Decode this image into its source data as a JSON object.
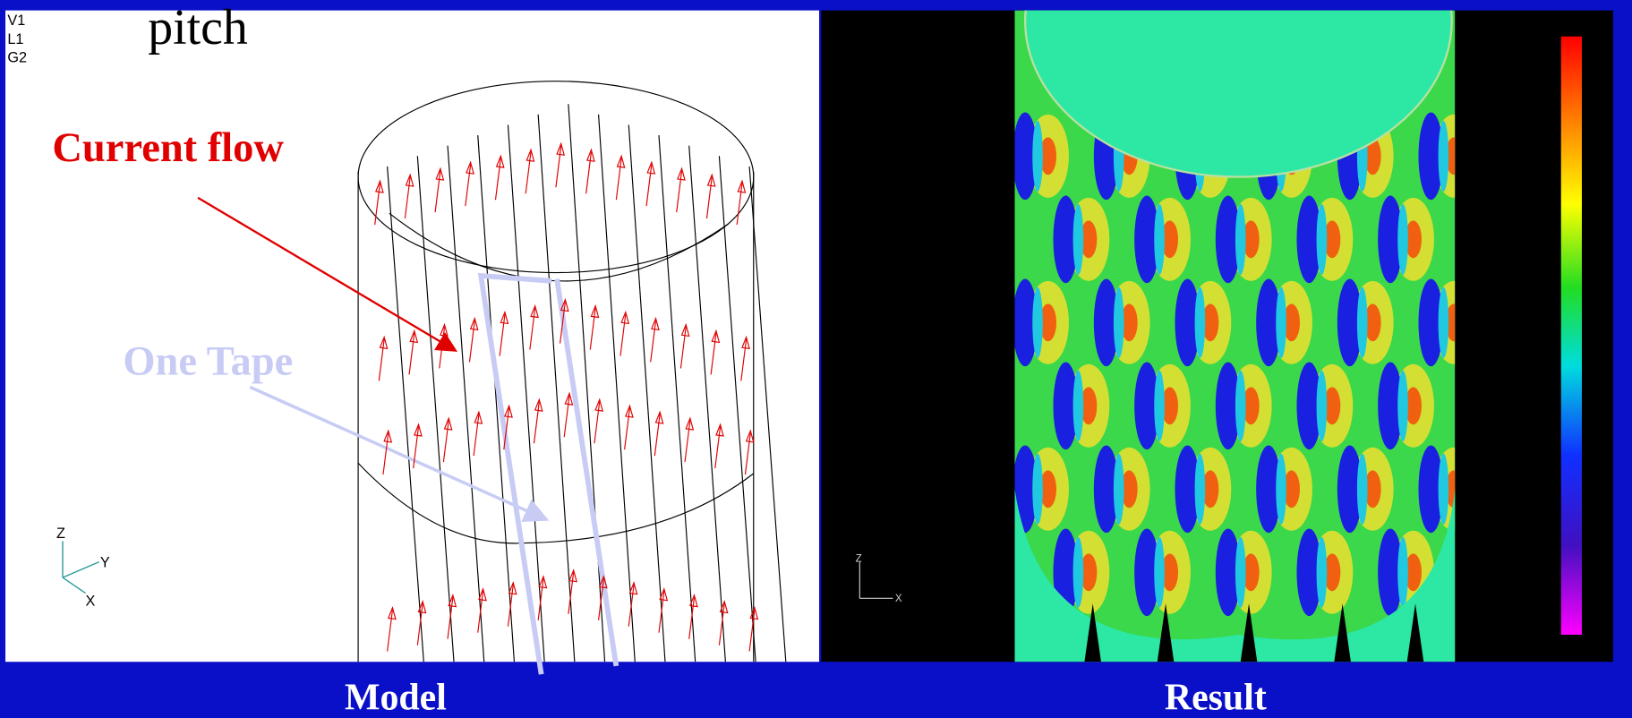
{
  "model_panel": {
    "view_labels": [
      "V1",
      "L1",
      "G2"
    ],
    "title": "pitch",
    "current_flow": "Current flow",
    "one_tape": "One Tape",
    "axis_z": "Z",
    "axis_y": "Y",
    "axis_x": "X",
    "caption": "Model"
  },
  "result_panel": {
    "axis_z": "Z",
    "axis_x": "X",
    "caption": "Result"
  }
}
